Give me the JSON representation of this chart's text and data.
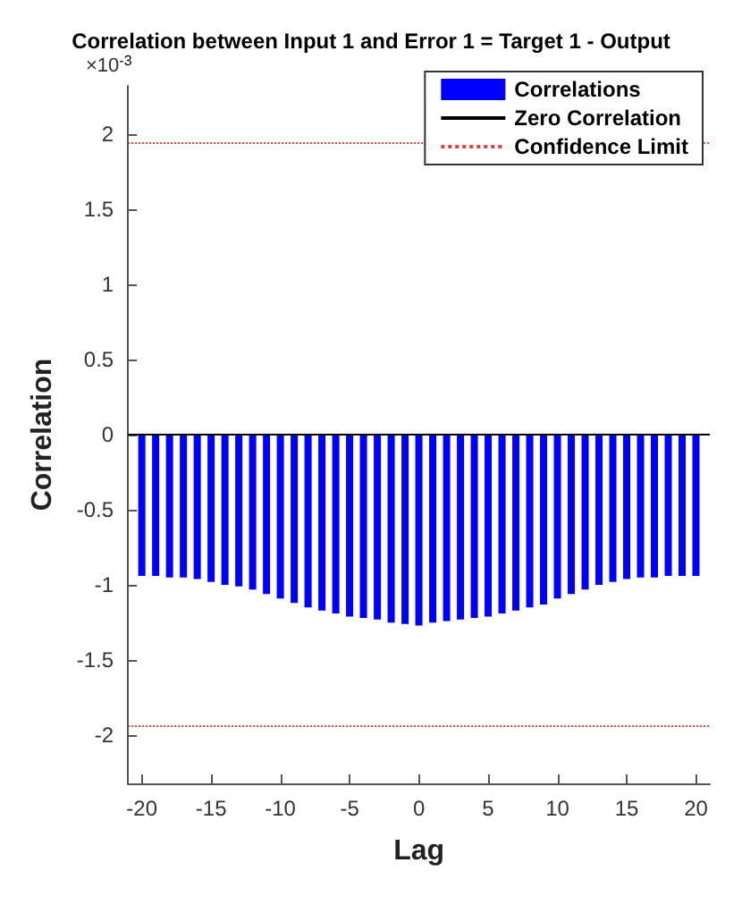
{
  "chart_data": {
    "type": "bar",
    "title": "Correlation between Input 1 and Error 1 = Target 1 - Output",
    "xlabel": "Lag",
    "ylabel": "Correlation",
    "annotations": [
      "×10$^{-3}$"
    ],
    "series": [
      {
        "name": "Correlations",
        "color": "#0000ff",
        "x": [
          -20,
          -19,
          -18,
          -17,
          -16,
          -15,
          -14,
          -13,
          -12,
          -11,
          -10,
          -9,
          -8,
          -7,
          -6,
          -5,
          -4,
          -3,
          -2,
          -1,
          0,
          1,
          2,
          3,
          4,
          5,
          6,
          7,
          8,
          9,
          10,
          11,
          12,
          13,
          14,
          15,
          16,
          17,
          18,
          19,
          20
        ],
        "values": [
          -0.94,
          -0.94,
          -0.95,
          -0.95,
          -0.96,
          -0.98,
          -1.0,
          -1.01,
          -1.03,
          -1.06,
          -1.09,
          -1.12,
          -1.15,
          -1.17,
          -1.19,
          -1.21,
          -1.22,
          -1.23,
          -1.25,
          -1.26,
          -1.27,
          -1.25,
          -1.24,
          -1.23,
          -1.22,
          -1.21,
          -1.19,
          -1.17,
          -1.15,
          -1.13,
          -1.09,
          -1.06,
          -1.03,
          -1.0,
          -0.98,
          -0.96,
          -0.95,
          -0.95,
          -0.94,
          -0.94,
          -0.94
        ]
      },
      {
        "name": "Zero Correlation",
        "type": "line",
        "color": "#000000",
        "x": [
          -21,
          21
        ],
        "values": [
          0,
          0
        ]
      },
      {
        "name": "Confidence Limit",
        "type": "line",
        "color": "#e04040",
        "line_style": "dotted",
        "x": [
          -21,
          21
        ],
        "values": [
          1.94,
          1.94
        ]
      },
      {
        "type": "line",
        "color": "#e04040",
        "line_style": "dotted",
        "x": [
          -21,
          21
        ],
        "values": [
          -1.94,
          -1.94
        ]
      }
    ],
    "xlim": [
      -21,
      21
    ],
    "xticks": [
      -20,
      -15,
      -10,
      -5,
      0,
      5,
      10,
      15,
      20
    ],
    "ylim": [
      -2.32,
      2.32
    ],
    "yticks": [
      -2,
      -1.5,
      -1,
      -0.5,
      0,
      0.5,
      1,
      1.5,
      2
    ],
    "grid": false,
    "legend": "top right",
    "marker": "none"
  }
}
